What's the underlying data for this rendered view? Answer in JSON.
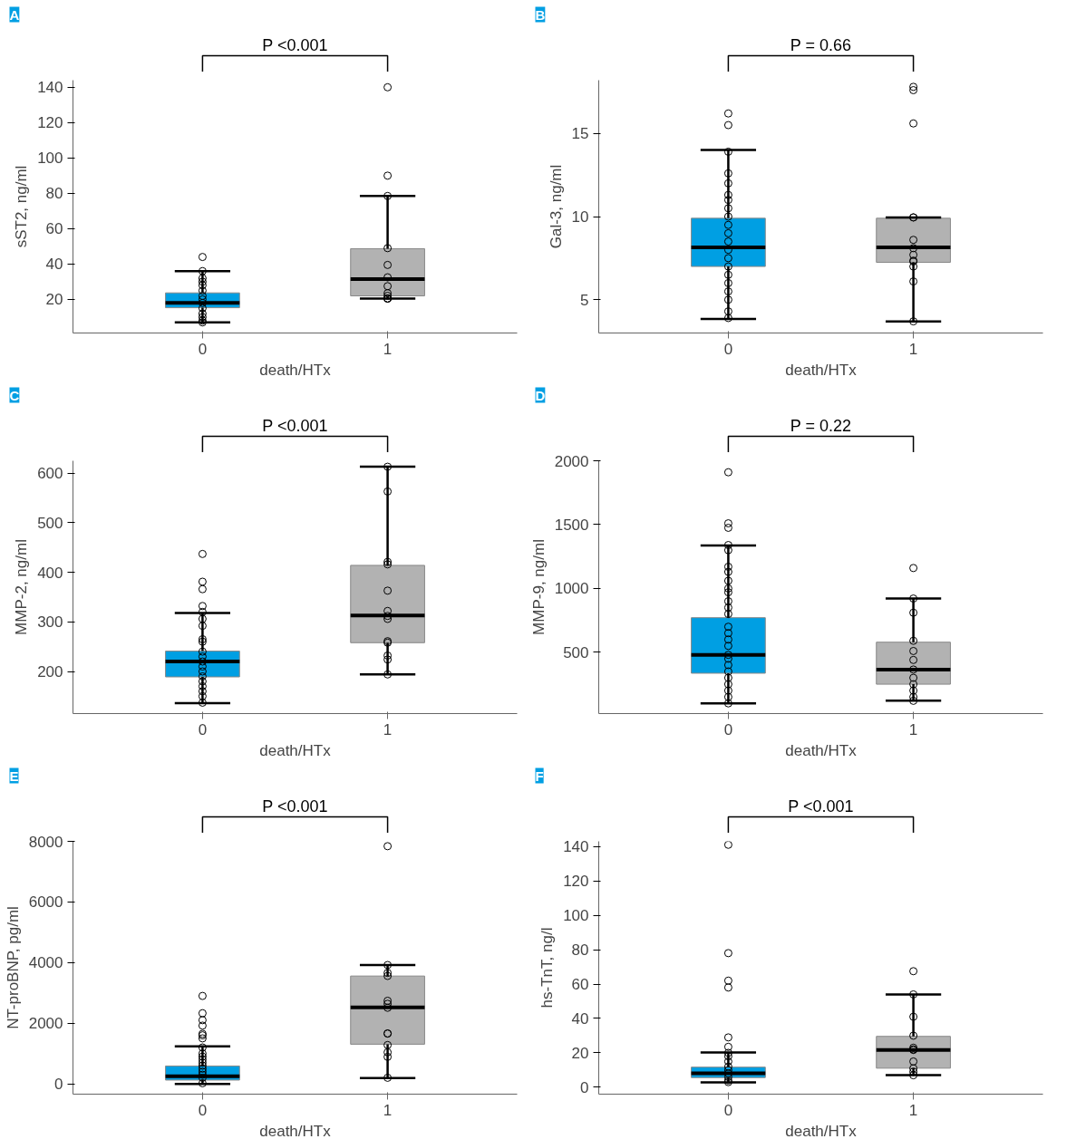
{
  "chart_data": [
    {
      "type": "box",
      "title": "A",
      "categories": [
        "0",
        "1"
      ],
      "xlabel": "death/HTx",
      "ylabel": "sST2, ng/ml",
      "ylim": [
        1,
        144
      ],
      "yticks": [
        20,
        40,
        60,
        80,
        100,
        120,
        140
      ],
      "colors": [
        "#009fe3",
        "#b2b2b2"
      ],
      "annotations": [
        "P <0.001"
      ],
      "marker": "circle",
      "boxes": [
        {
          "low": 7,
          "q1": 15.3,
          "median": 18,
          "q3": 23.7,
          "high": 36
        },
        {
          "low": 20.5,
          "q1": 22,
          "median": 31.5,
          "q3": 48.7,
          "high": 78.5
        }
      ],
      "series": [
        {
          "type": "scatter",
          "color": "#000000",
          "x": [
            "0",
            "0",
            "0",
            "0",
            "0",
            "0",
            "0",
            "0",
            "0",
            "0",
            "0",
            "0",
            "0",
            "0",
            "1",
            "1",
            "1",
            "1",
            "1",
            "1",
            "1",
            "1",
            "1",
            "1",
            "1",
            "1"
          ],
          "values": [
            44,
            36,
            32,
            30,
            28,
            25,
            22,
            20,
            18,
            15,
            12,
            10,
            8,
            7,
            140,
            90,
            78.5,
            49,
            39.5,
            32.5,
            27.5,
            23.5,
            22,
            20.5,
            20.5,
            20.5
          ]
        }
      ]
    },
    {
      "type": "box",
      "title": "B",
      "categories": [
        "0",
        "1"
      ],
      "xlabel": "death/HTx",
      "ylabel": "Gal-3, ng/ml",
      "ylim": [
        3,
        18.2
      ],
      "yticks": [
        5,
        10,
        15
      ],
      "colors": [
        "#009fe3",
        "#b2b2b2"
      ],
      "annotations": [
        "P = 0.66"
      ],
      "marker": "circle",
      "boxes": [
        {
          "low": 3.85,
          "q1": 7,
          "median": 8.15,
          "q3": 9.9,
          "high": 14
        },
        {
          "low": 3.7,
          "q1": 7.25,
          "median": 8.15,
          "q3": 9.9,
          "high": 9.95
        }
      ],
      "series": [
        {
          "type": "scatter",
          "color": "#000000",
          "x": [
            "0",
            "0",
            "0",
            "0",
            "0",
            "0",
            "0",
            "0",
            "0",
            "0",
            "0",
            "0",
            "0",
            "0",
            "0",
            "0",
            "0",
            "0",
            "0",
            "0",
            "0",
            "1",
            "1",
            "1",
            "1",
            "1",
            "1",
            "1",
            "1",
            "1",
            "1",
            "1",
            "1",
            "1"
          ],
          "values": [
            16.2,
            15.5,
            13.9,
            12.6,
            12,
            11.3,
            11,
            10.5,
            10,
            9.5,
            9,
            8.5,
            8,
            7.5,
            7,
            6.5,
            6,
            5.5,
            5,
            4.3,
            3.9,
            17.8,
            17.6,
            15.6,
            9.95,
            9.95,
            8.6,
            8.1,
            7.7,
            7.35,
            7.3,
            7,
            6.1,
            3.7
          ]
        }
      ]
    },
    {
      "type": "box",
      "title": "C",
      "categories": [
        "0",
        "1"
      ],
      "xlabel": "death/HTx",
      "ylabel": "MMP-2, ng/ml",
      "ylim": [
        115,
        625
      ],
      "yticks": [
        200,
        300,
        400,
        500,
        600
      ],
      "colors": [
        "#009fe3",
        "#b2b2b2"
      ],
      "annotations": [
        "P <0.001"
      ],
      "marker": "circle",
      "boxes": [
        {
          "low": 136,
          "q1": 189,
          "median": 220,
          "q3": 241,
          "high": 318
        },
        {
          "low": 194,
          "q1": 258,
          "median": 313,
          "q3": 414,
          "high": 613
        }
      ],
      "series": [
        {
          "type": "scatter",
          "color": "#000000",
          "x": [
            "0",
            "0",
            "0",
            "0",
            "0",
            "0",
            "0",
            "0",
            "0",
            "0",
            "0",
            "0",
            "0",
            "0",
            "0",
            "0",
            "0",
            "0",
            "0",
            "0",
            "1",
            "1",
            "1",
            "1",
            "1",
            "1",
            "1",
            "1",
            "1",
            "1",
            "1",
            "1",
            "1"
          ],
          "values": [
            437,
            381,
            366,
            332,
            320,
            306,
            292,
            265,
            260,
            240,
            230,
            220,
            210,
            200,
            190,
            180,
            170,
            160,
            150,
            137,
            613,
            563,
            421,
            416,
            363,
            322,
            312,
            306,
            261,
            258,
            232,
            224,
            194
          ]
        }
      ]
    },
    {
      "type": "box",
      "title": "D",
      "categories": [
        "0",
        "1"
      ],
      "xlabel": "death/HTx",
      "ylabel": "MMP-9, ng/ml",
      "ylim": [
        20,
        2000
      ],
      "yticks": [
        500,
        1000,
        1500,
        2000
      ],
      "colors": [
        "#009fe3",
        "#b2b2b2"
      ],
      "annotations": [
        "P = 0.22"
      ],
      "marker": "circle",
      "boxes": [
        {
          "low": 100,
          "q1": 336,
          "median": 479,
          "q3": 771,
          "high": 1336
        },
        {
          "low": 121,
          "q1": 250,
          "median": 364,
          "q3": 579,
          "high": 921
        }
      ],
      "series": [
        {
          "type": "scatter",
          "color": "#000000",
          "x": [
            "0",
            "0",
            "0",
            "0",
            "0",
            "0",
            "0",
            "0",
            "0",
            "0",
            "0",
            "0",
            "0",
            "0",
            "0",
            "0",
            "0",
            "0",
            "0",
            "0",
            "0",
            "0",
            "0",
            "0",
            "0",
            "0",
            "1",
            "1",
            "1",
            "1",
            "1",
            "1",
            "1",
            "1",
            "1",
            "1",
            "1",
            "1"
          ],
          "values": [
            1910,
            1510,
            1475,
            1340,
            1300,
            1170,
            1130,
            1060,
            1000,
            970,
            900,
            850,
            800,
            700,
            650,
            600,
            550,
            480,
            450,
            400,
            350,
            300,
            250,
            200,
            150,
            100,
            1160,
            921,
            810,
            590,
            510,
            440,
            365,
            300,
            250,
            200,
            150,
            120
          ]
        }
      ]
    },
    {
      "type": "box",
      "title": "E",
      "categories": [
        "0",
        "1"
      ],
      "xlabel": "death/HTx",
      "ylabel": "NT-proBNP, pg/ml",
      "ylim": [
        -340,
        8000
      ],
      "yticks": [
        0,
        2000,
        4000,
        6000,
        8000
      ],
      "colors": [
        "#009fe3",
        "#b2b2b2"
      ],
      "annotations": [
        "P <0.001"
      ],
      "marker": "circle",
      "boxes": [
        {
          "low": 0,
          "q1": 124,
          "median": 248,
          "q3": 589,
          "high": 1240
        },
        {
          "low": 188,
          "q1": 1307,
          "median": 2521,
          "q3": 3556,
          "high": 3922
        }
      ],
      "series": [
        {
          "type": "scatter",
          "color": "#000000",
          "x": [
            "0",
            "0",
            "0",
            "0",
            "0",
            "0",
            "0",
            "0",
            "0",
            "0",
            "0",
            "0",
            "0",
            "0",
            "0",
            "0",
            "0",
            "0",
            "1",
            "1",
            "1",
            "1",
            "1",
            "1",
            "1",
            "1",
            "1",
            "1",
            "1",
            "1",
            "1"
          ],
          "values": [
            2900,
            2330,
            2100,
            1920,
            1650,
            1600,
            1500,
            1200,
            1000,
            900,
            800,
            700,
            600,
            500,
            400,
            300,
            200,
            20,
            7840,
            3920,
            3660,
            3560,
            2740,
            2640,
            2510,
            1660,
            1660,
            1280,
            1040,
            890,
            200
          ]
        }
      ]
    },
    {
      "type": "box",
      "title": "F",
      "categories": [
        "0",
        "1"
      ],
      "xlabel": "death/HTx",
      "ylabel": "hs-TnT, ng/l",
      "ylim": [
        -4,
        143
      ],
      "yticks": [
        0,
        20,
        40,
        60,
        80,
        100,
        120,
        140
      ],
      "colors": [
        "#009fe3",
        "#b2b2b2"
      ],
      "annotations": [
        "P <0.001"
      ],
      "marker": "circle",
      "boxes": [
        {
          "low": 2.8,
          "q1": 5.65,
          "median": 8.1,
          "q3": 11.7,
          "high": 20.2
        },
        {
          "low": 7,
          "q1": 11.1,
          "median": 21.7,
          "q3": 29.6,
          "high": 53.9
        }
      ],
      "series": [
        {
          "type": "scatter",
          "color": "#000000",
          "x": [
            "0",
            "0",
            "0",
            "0",
            "0",
            "0",
            "0",
            "0",
            "0",
            "0",
            "0",
            "0",
            "0",
            "0",
            "0",
            "1",
            "1",
            "1",
            "1",
            "1",
            "1",
            "1",
            "1",
            "1",
            "1",
            "1"
          ],
          "values": [
            141,
            78,
            62,
            58,
            29,
            23.5,
            20,
            18,
            15,
            12,
            10,
            8,
            6,
            4,
            3,
            67.5,
            54,
            41,
            30,
            23,
            22,
            21.7,
            15,
            11,
            9,
            7
          ]
        }
      ]
    }
  ]
}
